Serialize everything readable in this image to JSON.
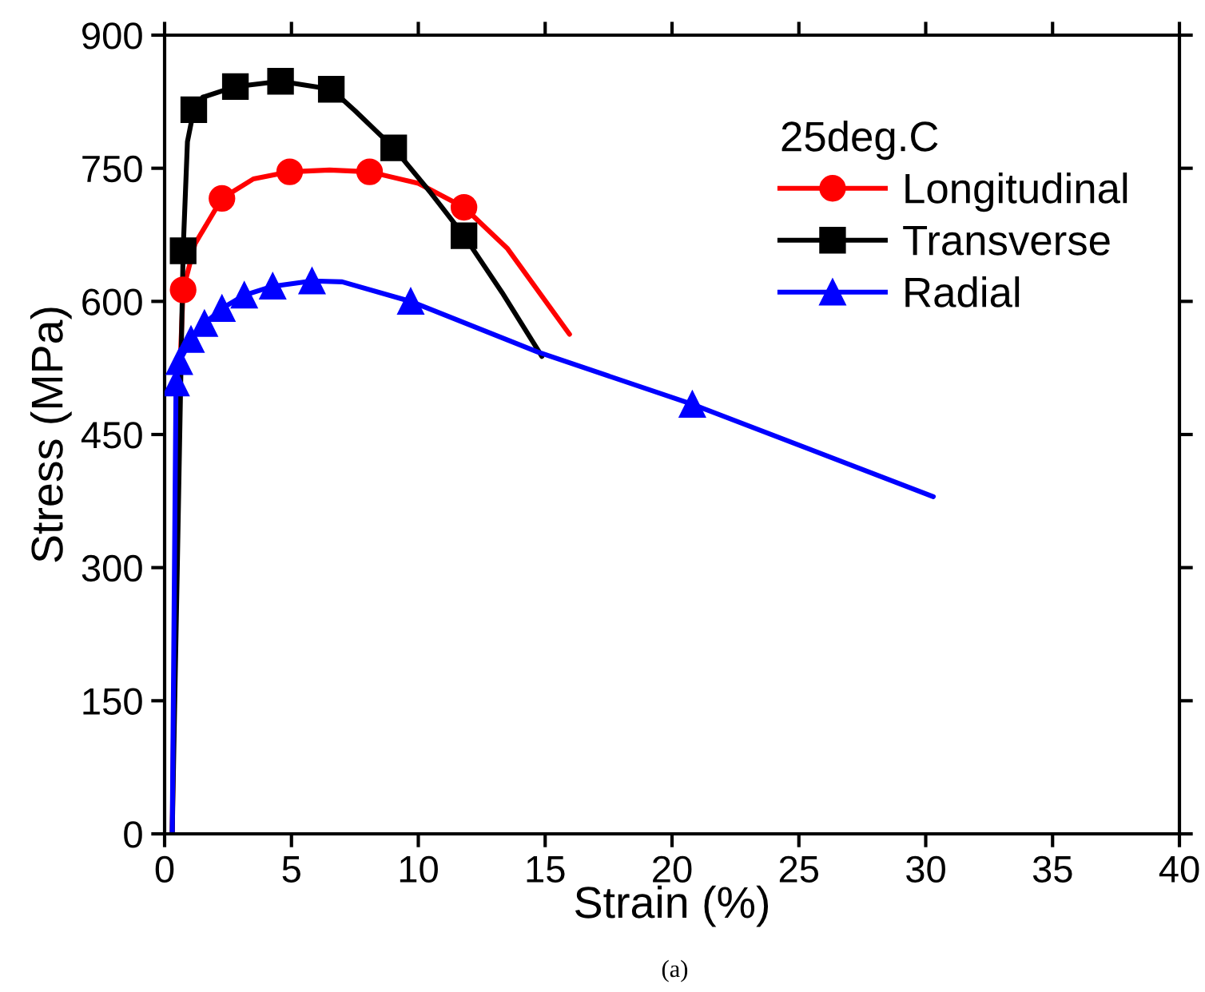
{
  "chart_data": {
    "type": "line",
    "xlabel": "Strain (%)",
    "ylabel": "Stress (MPa)",
    "legend_title": "25deg.C",
    "xlim": [
      0,
      40
    ],
    "xticks": [
      0,
      5,
      10,
      15,
      20,
      25,
      30,
      35,
      40
    ],
    "ylim": [
      0,
      900
    ],
    "yticks": [
      0,
      150,
      300,
      450,
      600,
      750,
      900
    ],
    "grid": false,
    "legend": "top right",
    "line_style": "solid",
    "series": [
      {
        "color": "#ff0000",
        "marker": "none",
        "x": [
          0.3,
          0.5,
          0.73,
          1.2,
          2.26,
          3.5,
          4.93,
          6.5,
          8.08,
          10,
          11.8,
          13.5,
          15.96
        ],
        "values": [
          0,
          450,
          613,
          665,
          716,
          738,
          746,
          748,
          746,
          733,
          706,
          660,
          563
        ]
      },
      {
        "color": "#000000",
        "marker": "none",
        "x": [
          0.3,
          0.5,
          0.73,
          0.9,
          1.15,
          1.5,
          2.79,
          4.57,
          6.57,
          7.5,
          9.03,
          10.5,
          11.8,
          13.3,
          14.87
        ],
        "values": [
          0,
          300,
          657,
          780,
          816,
          830,
          842,
          848,
          839,
          815,
          773,
          722,
          674,
          610,
          538
        ]
      },
      {
        "color": "#0000ff",
        "marker": "none",
        "x": [
          0.3,
          0.45,
          0.58,
          1.04,
          1.57,
          2.26,
          3.14,
          4.26,
          5.81,
          7,
          9.7,
          14.7,
          20.8,
          30.3
        ],
        "values": [
          0,
          508,
          532,
          557,
          575,
          592,
          607,
          617,
          623,
          622,
          600,
          543,
          484,
          380
        ]
      },
      {
        "type": "scatter",
        "name": "Longitudinal",
        "color": "#ff0000",
        "marker": "circle",
        "x": [
          0.73,
          2.26,
          4.93,
          8.08,
          11.8
        ],
        "values": [
          613,
          716,
          746,
          746,
          706
        ]
      },
      {
        "type": "scatter",
        "name": "Transverse",
        "color": "#000000",
        "marker": "square",
        "x": [
          0.73,
          1.15,
          2.79,
          4.57,
          6.57,
          9.03,
          11.8
        ],
        "values": [
          657,
          816,
          842,
          848,
          839,
          773,
          674
        ]
      },
      {
        "type": "scatter",
        "name": "Radial",
        "color": "#0000ff",
        "marker": "triangle",
        "x": [
          0.45,
          0.58,
          1.04,
          1.57,
          2.26,
          3.14,
          4.26,
          5.81,
          9.7,
          20.8
        ],
        "values": [
          508,
          532,
          557,
          575,
          592,
          607,
          617,
          623,
          600,
          484
        ]
      }
    ],
    "annotations": [
      "(a)"
    ]
  }
}
